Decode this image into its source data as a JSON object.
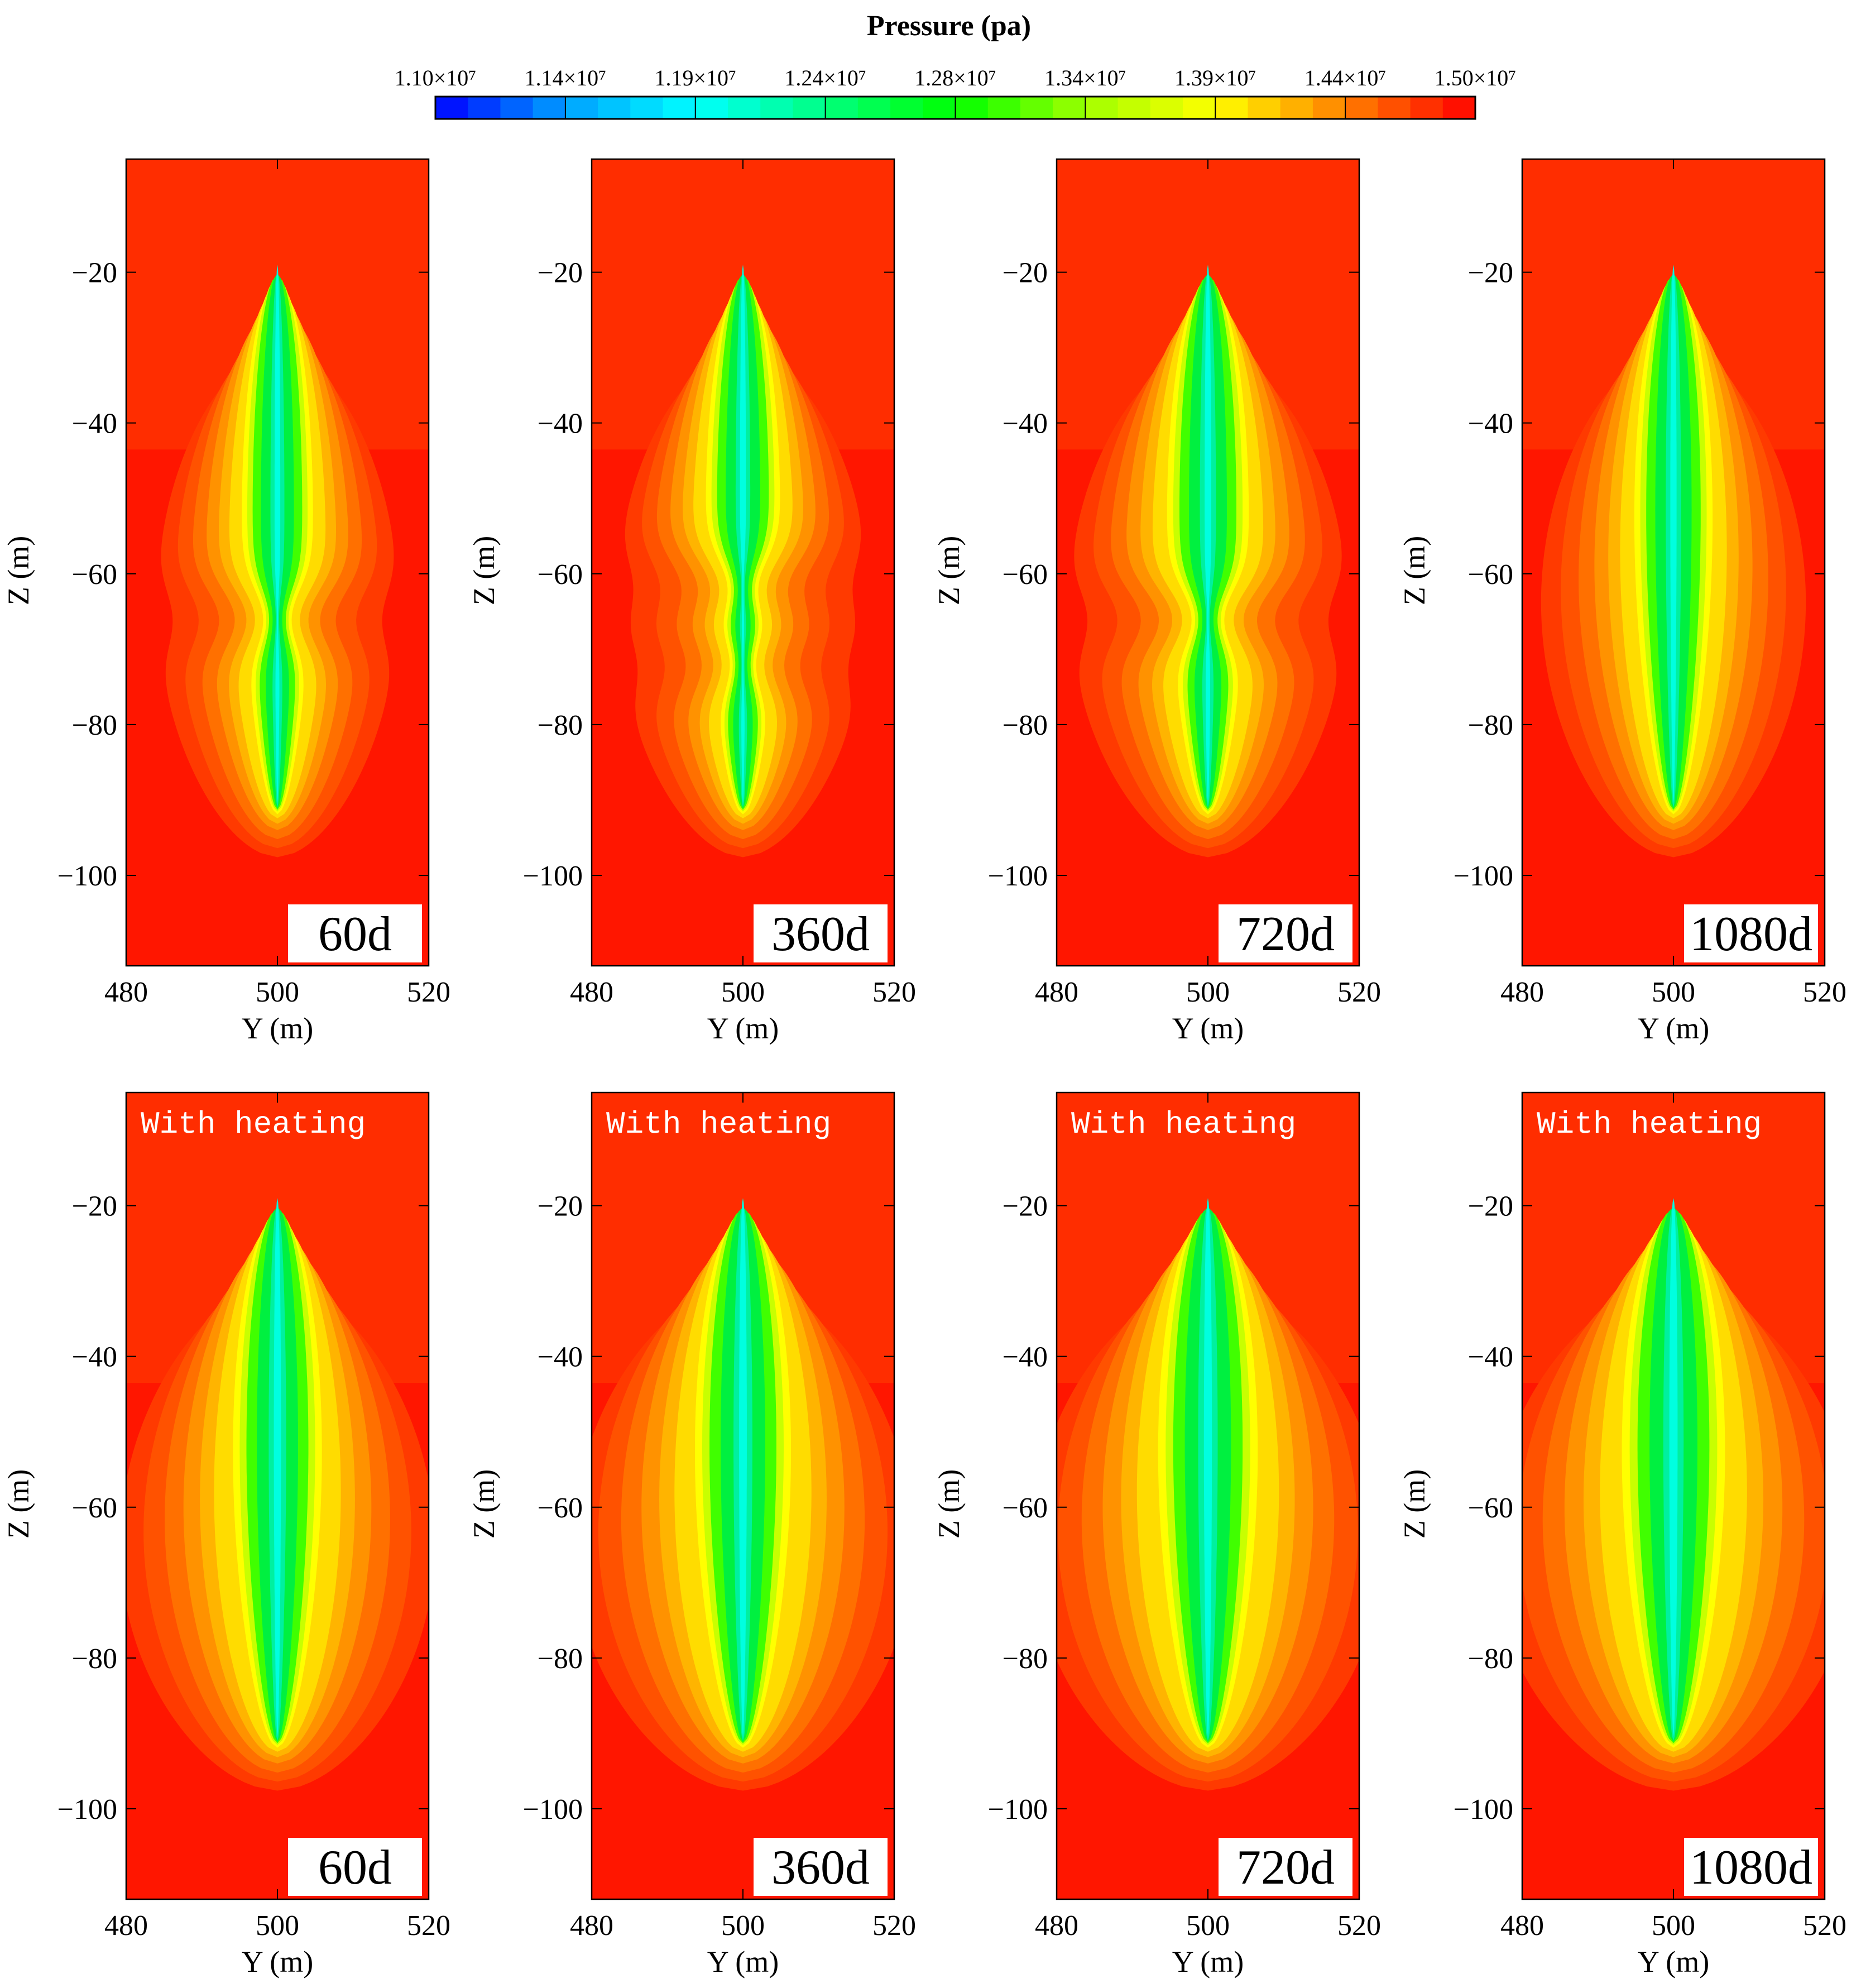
{
  "chart_data": {
    "type": "heatmap",
    "colorbar": {
      "title": "Pressure (pa)",
      "tick_labels": [
        "1.10×10⁷",
        "1.14×10⁷",
        "1.19×10⁷",
        "1.24×10⁷",
        "1.28×10⁷",
        "1.34×10⁷",
        "1.39×10⁷",
        "1.44×10⁷",
        "1.50×10⁷"
      ],
      "min": 11000000,
      "max": 15000000,
      "colors": [
        "#0000ff",
        "#00a0ff",
        "#00ffff",
        "#00ff80",
        "#00ff00",
        "#a0ff00",
        "#ffff00",
        "#ff8000",
        "#ff0000"
      ]
    },
    "xlabel": "Y (m)",
    "ylabel": "Z (m)",
    "xlim": [
      480,
      520
    ],
    "ylim": [
      -112,
      -5
    ],
    "xticks": [
      "480",
      "500",
      "520"
    ],
    "yticks": [
      "−20",
      "−40",
      "−60",
      "−80",
      "−100"
    ],
    "xtick_values": [
      480,
      500,
      520
    ],
    "ytick_values": [
      -20,
      -40,
      -60,
      -80,
      -100
    ],
    "panels": [
      {
        "label": "60d",
        "heating_label": "",
        "top": -20,
        "bottom": -91,
        "waist": [
          -66
        ],
        "width": 1.0
      },
      {
        "label": "360d",
        "heating_label": "",
        "top": -20,
        "bottom": -91,
        "waist": [
          -62,
          -72
        ],
        "width": 1.05
      },
      {
        "label": "720d",
        "heating_label": "",
        "top": -20,
        "bottom": -91,
        "waist": [
          -66
        ],
        "width": 1.15
      },
      {
        "label": "1080d",
        "heating_label": "",
        "top": -20,
        "bottom": -91,
        "waist": [],
        "width": 1.1
      },
      {
        "label": "60d",
        "heating_label": "With heating",
        "top": -20,
        "bottom": -91,
        "waist": [],
        "width": 1.25
      },
      {
        "label": "360d",
        "heating_label": "With heating",
        "top": -20,
        "bottom": -91,
        "waist": [],
        "width": 1.35
      },
      {
        "label": "720d",
        "heating_label": "With heating",
        "top": -20,
        "bottom": -91,
        "waist": [],
        "width": 1.4
      },
      {
        "label": "1080d",
        "heating_label": "With heating",
        "top": -20,
        "bottom": -91,
        "waist": [],
        "width": 1.45
      }
    ]
  }
}
